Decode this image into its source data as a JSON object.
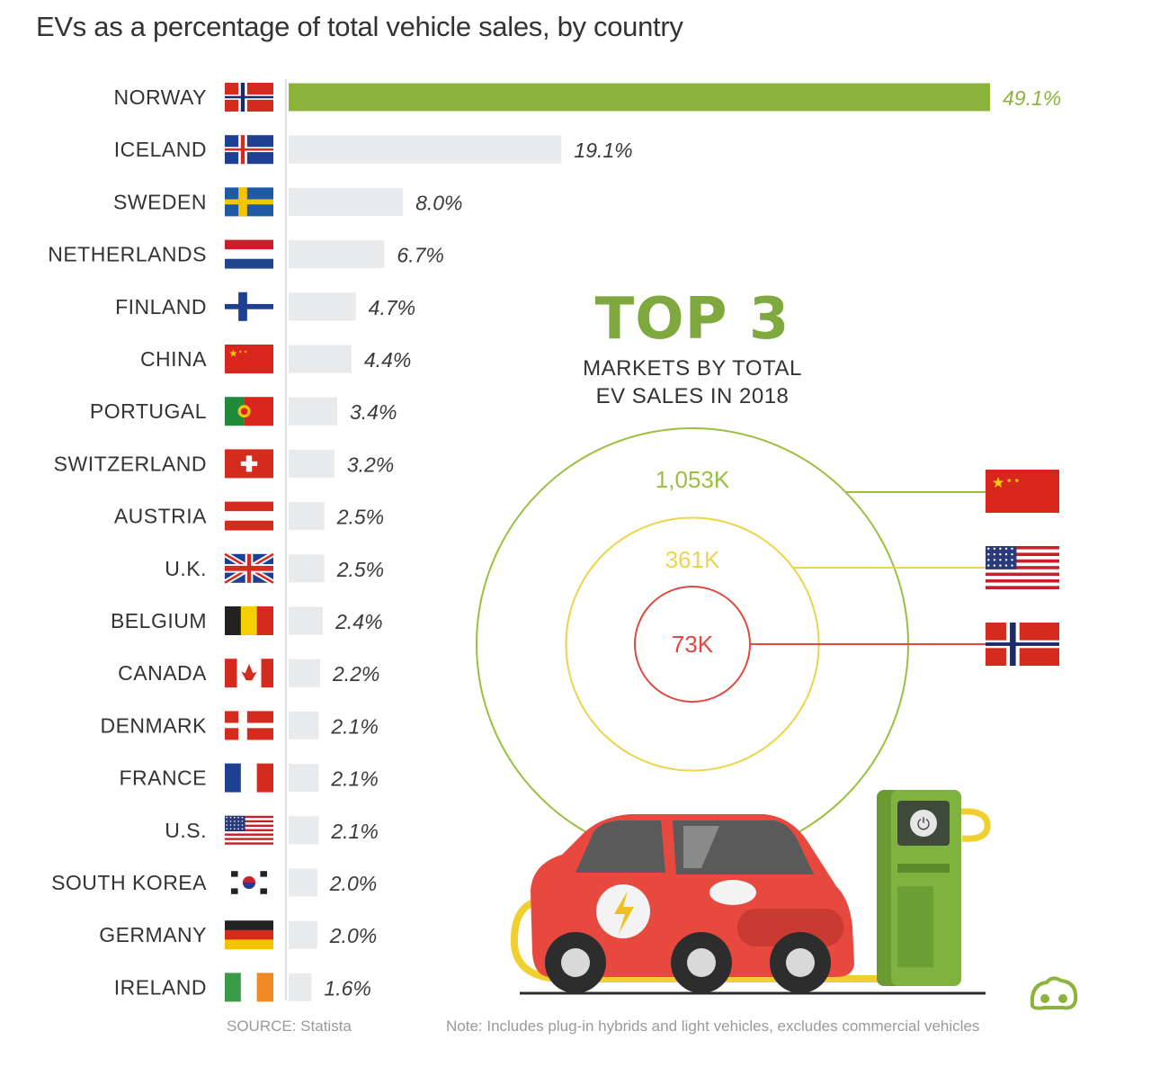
{
  "title": "EVs as a percentage of total vehicle sales, by country",
  "chart_data": {
    "type": "bar",
    "orientation": "horizontal",
    "title": "EVs as a percentage of total vehicle sales, by country",
    "unit": "%",
    "categories": [
      "NORWAY",
      "ICELAND",
      "SWEDEN",
      "NETHERLANDS",
      "FINLAND",
      "CHINA",
      "PORTUGAL",
      "SWITZERLAND",
      "AUSTRIA",
      "U.K.",
      "BELGIUM",
      "CANADA",
      "DENMARK",
      "FRANCE",
      "U.S.",
      "SOUTH KOREA",
      "GERMANY",
      "IRELAND"
    ],
    "values": [
      49.1,
      19.1,
      8.0,
      6.7,
      4.7,
      4.4,
      3.4,
      3.2,
      2.5,
      2.5,
      2.4,
      2.2,
      2.1,
      2.1,
      2.1,
      2.0,
      2.0,
      1.6
    ],
    "labels": [
      "49.1%",
      "19.1%",
      "8.0%",
      "6.7%",
      "4.7%",
      "4.4%",
      "3.4%",
      "3.2%",
      "2.5%",
      "2.5%",
      "2.4%",
      "2.2%",
      "2.1%",
      "2.1%",
      "2.1%",
      "2.0%",
      "2.0%",
      "1.6%"
    ],
    "flags": [
      "norway-flag",
      "iceland-flag",
      "sweden-flag",
      "netherlands-flag",
      "finland-flag",
      "china-flag",
      "portugal-flag",
      "switzerland-flag",
      "austria-flag",
      "uk-flag",
      "belgium-flag",
      "canada-flag",
      "denmark-flag",
      "france-flag",
      "us-flag",
      "south-korea-flag",
      "germany-flag",
      "ireland-flag"
    ],
    "highlight_color": "#8cb43c",
    "bar_color": "#e9eaeb",
    "highlight_label_color": "#8cb43c",
    "label_color": "#3a3a3a"
  },
  "top3": {
    "heading": "TOP 3",
    "subtitle_line1": "MARKETS BY TOTAL",
    "subtitle_line2": "EV SALES IN 2018",
    "heading_color": "#7fa93e",
    "markets": [
      {
        "label": "1,053K",
        "value_k": 1053,
        "flag": "china-flag",
        "color": "#9cbf3f"
      },
      {
        "label": "361K",
        "value_k": 361,
        "flag": "us-flag",
        "color": "#ebd54a"
      },
      {
        "label": "73K",
        "value_k": 73,
        "flag": "norway-flag",
        "color": "#e0493f"
      }
    ]
  },
  "footer": {
    "source": "SOURCE: Statista",
    "note": "Note: Includes plug-in hybrids and light vehicles, excludes commercial vehicles"
  },
  "icons": [
    "ev-car-icon",
    "charging-station-icon",
    "logo-icon"
  ]
}
